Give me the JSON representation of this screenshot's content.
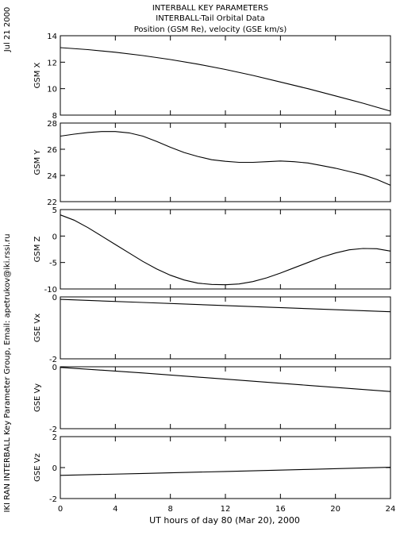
{
  "header": {
    "title_line1": "INTERBALL KEY PARAMETERS",
    "title_line2": "INTERBALL-Tail Orbital Data",
    "title_line3": "Position (GSM Re), velocity (GSE km/s)"
  },
  "side_date": "Jul 21 2000",
  "side_credit": "IKI RAN INTERBALL Key Parameter Group, Email: apetrukov@iki.rssi.ru",
  "colors": {
    "line": "#000000",
    "background": "#ffffff"
  },
  "chart_data": {
    "type": "line",
    "shared_x": {
      "label": "UT hours of day  80 (Mar 20), 2000",
      "range": [
        0,
        24
      ],
      "ticks": [
        0,
        4,
        8,
        12,
        16,
        20,
        24
      ],
      "tick_labels": [
        "0",
        "4",
        "8",
        "12",
        "16",
        "20",
        "24"
      ]
    },
    "panels": [
      {
        "ylabel": "GSM X",
        "ylim": [
          8,
          14
        ],
        "yticks": [
          8,
          10,
          12,
          14
        ],
        "ytick_labels": [
          "8",
          "10",
          "12",
          "14"
        ],
        "x": [
          0,
          2,
          4,
          6,
          8,
          10,
          12,
          14,
          16,
          18,
          20,
          22,
          24
        ],
        "y": [
          13.1,
          12.95,
          12.75,
          12.5,
          12.2,
          11.85,
          11.45,
          11.0,
          10.5,
          10.0,
          9.45,
          8.9,
          8.3
        ]
      },
      {
        "ylabel": "GSM Y",
        "ylim": [
          22,
          28
        ],
        "yticks": [
          22,
          24,
          26,
          28
        ],
        "ytick_labels": [
          "22",
          "24",
          "26",
          "28"
        ],
        "x": [
          0,
          1,
          2,
          3,
          4,
          5,
          6,
          7,
          8,
          9,
          10,
          11,
          12,
          13,
          14,
          15,
          16,
          17,
          18,
          19,
          20,
          21,
          22,
          23,
          24
        ],
        "y": [
          27.0,
          27.15,
          27.28,
          27.35,
          27.35,
          27.25,
          27.0,
          26.6,
          26.15,
          25.75,
          25.45,
          25.2,
          25.08,
          25.0,
          25.0,
          25.05,
          25.1,
          25.05,
          24.95,
          24.75,
          24.55,
          24.3,
          24.05,
          23.7,
          23.25
        ]
      },
      {
        "ylabel": "GSM Z",
        "ylim": [
          -10,
          5
        ],
        "yticks": [
          -10,
          -5,
          0,
          5
        ],
        "ytick_labels": [
          "-10",
          "-5",
          "0",
          "5"
        ],
        "x": [
          0,
          1,
          2,
          3,
          4,
          5,
          6,
          7,
          8,
          9,
          10,
          11,
          12,
          13,
          14,
          15,
          16,
          17,
          18,
          19,
          20,
          21,
          22,
          23,
          24
        ],
        "y": [
          4.0,
          3.0,
          1.6,
          0.0,
          -1.6,
          -3.2,
          -4.8,
          -6.2,
          -7.4,
          -8.3,
          -8.9,
          -9.15,
          -9.2,
          -9.05,
          -8.6,
          -7.9,
          -7.0,
          -6.0,
          -5.0,
          -4.0,
          -3.2,
          -2.6,
          -2.35,
          -2.4,
          -2.85
        ]
      },
      {
        "ylabel": "GSE Vx",
        "ylim": [
          -2,
          0
        ],
        "yticks": [
          -2,
          0
        ],
        "ytick_labels": [
          "-2",
          "0"
        ],
        "x": [
          0,
          6,
          12,
          18,
          24
        ],
        "y": [
          -0.08,
          -0.18,
          -0.28,
          -0.38,
          -0.48
        ]
      },
      {
        "ylabel": "GSE Vy",
        "ylim": [
          -2,
          0
        ],
        "yticks": [
          -2,
          0
        ],
        "ytick_labels": [
          "-2",
          "0"
        ],
        "x": [
          0,
          6,
          12,
          18,
          24
        ],
        "y": [
          -0.02,
          -0.2,
          -0.4,
          -0.6,
          -0.8
        ]
      },
      {
        "ylabel": "GSE Vz",
        "ylim": [
          -2,
          2
        ],
        "yticks": [
          -2,
          0,
          2
        ],
        "ytick_labels": [
          "-2",
          "0",
          "2"
        ],
        "x": [
          0,
          6,
          12,
          18,
          24
        ],
        "y": [
          -0.5,
          -0.38,
          -0.25,
          -0.12,
          0.02
        ]
      }
    ]
  }
}
